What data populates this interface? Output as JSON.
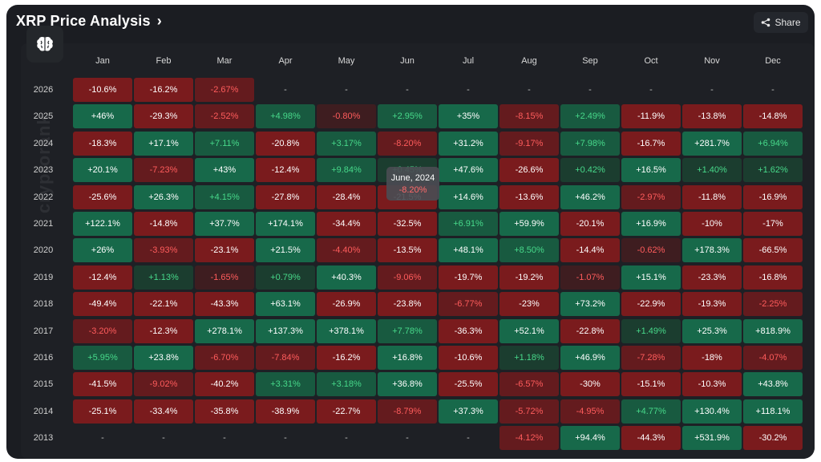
{
  "header": {
    "title": "XRP Price Analysis",
    "share_label": "Share"
  },
  "watermark": "cryptorank",
  "tooltip": {
    "title": "June, 2024",
    "value": "-8.20%"
  },
  "colors": {
    "strong_green": "#17694a",
    "green": "#185a40",
    "weak_green": "#1b3d2f",
    "strong_red": "#7a1b1d",
    "red": "#641b1e",
    "weak_red": "#3e1d20",
    "text_pos_strong": "#ffffff",
    "text_neg_strong": "#ffffff",
    "text_pos_weak": "#47d98a",
    "text_neg_weak": "#ff5c5c"
  },
  "chart_data": {
    "type": "heatmap",
    "title": "XRP Price Analysis",
    "columns": [
      "Jan",
      "Feb",
      "Mar",
      "Apr",
      "May",
      "Jun",
      "Jul",
      "Aug",
      "Sep",
      "Oct",
      "Nov",
      "Dec"
    ],
    "years": [
      "2026",
      "2025",
      "2024",
      "2023",
      "2022",
      "2021",
      "2020",
      "2019",
      "2018",
      "2017",
      "2016",
      "2015",
      "2014",
      "2013"
    ],
    "values": [
      [
        "-10.6%",
        "-16.2%",
        "-2.67%",
        "-",
        "-",
        "-",
        "-",
        "-",
        "-",
        "-",
        "-",
        "-"
      ],
      [
        "+46%",
        "-29.3%",
        "-2.52%",
        "+4.98%",
        "-0.80%",
        "+2.95%",
        "+35%",
        "-8.15%",
        "+2.49%",
        "-11.9%",
        "-13.8%",
        "-14.8%"
      ],
      [
        "-18.3%",
        "+17.1%",
        "+7.11%",
        "-20.8%",
        "+3.17%",
        "-8.20%",
        "+31.2%",
        "-9.17%",
        "+7.98%",
        "-16.7%",
        "+281.7%",
        "+6.94%"
      ],
      [
        "+20.1%",
        "-7.23%",
        "+43%",
        "-12.4%",
        "+9.84%",
        "+0.45%",
        "+47.6%",
        "-26.6%",
        "+0.42%",
        "+16.5%",
        "+1.40%",
        "+1.62%"
      ],
      [
        "-25.6%",
        "+26.3%",
        "+4.15%",
        "-27.8%",
        "-28.4%",
        "-21.5%",
        "+14.6%",
        "-13.6%",
        "+46.2%",
        "-2.97%",
        "-11.8%",
        "-16.9%"
      ],
      [
        "+122.1%",
        "-14.8%",
        "+37.7%",
        "+174.1%",
        "-34.4%",
        "-32.5%",
        "+6.91%",
        "+59.9%",
        "-20.1%",
        "+16.9%",
        "-10%",
        "-17%"
      ],
      [
        "+26%",
        "-3.93%",
        "-23.1%",
        "+21.5%",
        "-4.40%",
        "-13.5%",
        "+48.1%",
        "+8.50%",
        "-14.4%",
        "-0.62%",
        "+178.3%",
        "-66.5%"
      ],
      [
        "-12.4%",
        "+1.13%",
        "-1.65%",
        "+0.79%",
        "+40.3%",
        "-9.06%",
        "-19.7%",
        "-19.2%",
        "-1.07%",
        "+15.1%",
        "-23.3%",
        "-16.8%"
      ],
      [
        "-49.4%",
        "-22.1%",
        "-43.3%",
        "+63.1%",
        "-26.9%",
        "-23.8%",
        "-6.77%",
        "-23%",
        "+73.2%",
        "-22.9%",
        "-19.3%",
        "-2.25%"
      ],
      [
        "-3.20%",
        "-12.3%",
        "+278.1%",
        "+137.3%",
        "+378.1%",
        "+7.78%",
        "-36.3%",
        "+52.1%",
        "-22.8%",
        "+1.49%",
        "+25.3%",
        "+818.9%"
      ],
      [
        "+5.95%",
        "+23.8%",
        "-6.70%",
        "-7.84%",
        "-16.2%",
        "+16.8%",
        "-10.6%",
        "+1.18%",
        "+46.9%",
        "-7.28%",
        "-18%",
        "-4.07%"
      ],
      [
        "-41.5%",
        "-9.02%",
        "-40.2%",
        "+3.31%",
        "+3.18%",
        "+36.8%",
        "-25.5%",
        "-6.57%",
        "-30%",
        "-15.1%",
        "-10.3%",
        "+43.8%"
      ],
      [
        "-25.1%",
        "-33.4%",
        "-35.8%",
        "-38.9%",
        "-22.7%",
        "-8.79%",
        "+37.3%",
        "-5.72%",
        "-4.95%",
        "+4.77%",
        "+130.4%",
        "+118.1%"
      ],
      [
        "-",
        "-",
        "-",
        "-",
        "-",
        "-",
        "-",
        "-4.12%",
        "+94.4%",
        "-44.3%",
        "+531.9%",
        "-30.2%"
      ]
    ]
  }
}
